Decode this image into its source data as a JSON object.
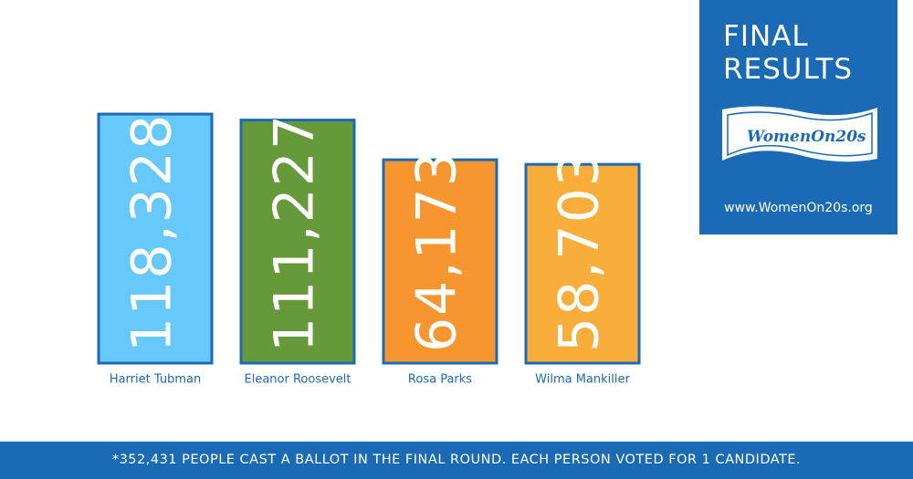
{
  "chart_data": {
    "type": "bar",
    "title": "FINAL RESULTS",
    "logo_text": "WomenOn20s",
    "url": "www.WomenOn20s.org",
    "note": "*352,431 PEOPLE CAST A BALLOT IN THE FINAL ROUND. EACH PERSON VOTED FOR 1 CANDIDATE.",
    "categories": [
      "Harriet Tubman",
      "Eleanor Roosevelt",
      "Rosa Parks",
      "Wilma Mankiller"
    ],
    "values": [
      118328,
      111227,
      64173,
      58703
    ],
    "value_labels": [
      "118,328",
      "111,227",
      "64,173",
      "58,703"
    ],
    "colors": [
      "#66c8fb",
      "#66993a",
      "#f7962f",
      "#f9ae3c"
    ],
    "border_color": "#1b6ab5",
    "ylim": [
      -177000,
      120000
    ]
  }
}
